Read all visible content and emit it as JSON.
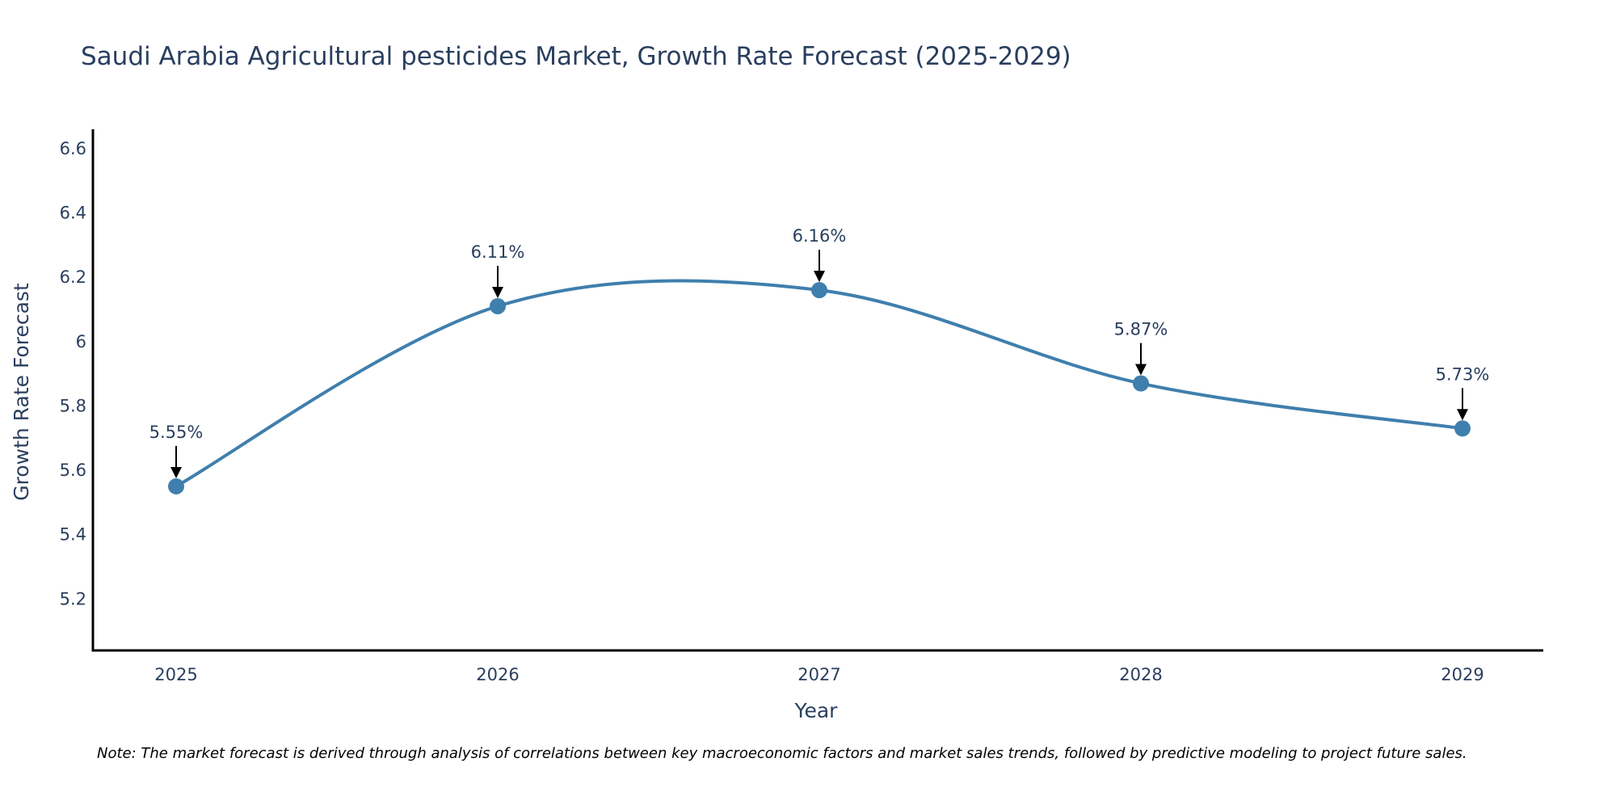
{
  "colors": {
    "line": "#3f7fad",
    "marker": "#3f7fad",
    "axis": "#000000",
    "text": "#2a3f5f",
    "arrow": "#000000"
  },
  "chart_data": {
    "type": "line",
    "title": "Saudi Arabia Agricultural pesticides Market, Growth Rate Forecast (2025-2029)",
    "xlabel": "Year",
    "ylabel": "Growth Rate Forecast",
    "categories": [
      "2025",
      "2026",
      "2027",
      "2028",
      "2029"
    ],
    "series": [
      {
        "name": "Growth Rate Forecast",
        "values": [
          5.55,
          6.11,
          6.16,
          5.87,
          5.73
        ]
      }
    ],
    "data_labels": [
      "5.55%",
      "6.11%",
      "6.16%",
      "5.87%",
      "5.73%"
    ],
    "ylim": [
      5.04,
      6.66
    ],
    "yticks": [
      5.2,
      5.4,
      5.6,
      5.8,
      6,
      6.2,
      6.4,
      6.6
    ],
    "ytick_labels": [
      "5.2",
      "5.4",
      "5.6",
      "5.8",
      "6",
      "6.2",
      "6.4",
      "6.6"
    ],
    "line_shape": "spline",
    "grid": false
  },
  "note": "Note: The market forecast is derived through analysis of correlations between key macroeconomic factors and market sales trends, followed by predictive modeling to project future sales."
}
